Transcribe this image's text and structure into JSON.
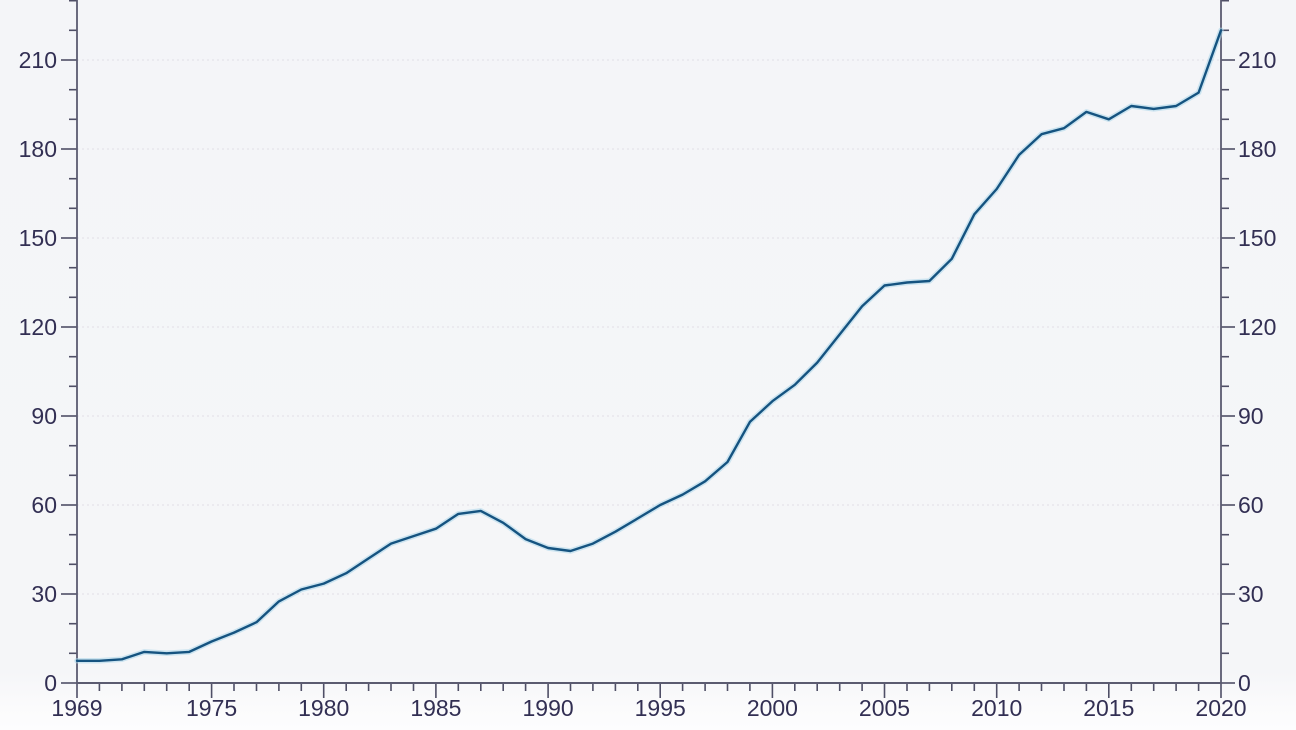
{
  "chart_data": {
    "type": "line",
    "title": "",
    "xlabel": "",
    "ylabel": "",
    "legend": "none",
    "grid": "horizontal dotted lines at labeled y ticks",
    "dual_y_axis": true,
    "xlim": [
      1969,
      2020
    ],
    "ylim_visible": [
      0,
      230
    ],
    "x_minor_tick_step": 1,
    "y_minor_tick_step": 10,
    "x_tick_labels": [
      "1969",
      "1975",
      "1980",
      "1985",
      "1990",
      "1995",
      "2000",
      "2005",
      "2010",
      "2015",
      "2020"
    ],
    "x_tick_values": [
      1969,
      1975,
      1980,
      1985,
      1990,
      1995,
      2000,
      2005,
      2010,
      2015,
      2020
    ],
    "y_tick_labels": [
      "0",
      "30",
      "60",
      "90",
      "120",
      "150",
      "180",
      "210"
    ],
    "y_tick_values": [
      0,
      30,
      60,
      90,
      120,
      150,
      180,
      210
    ],
    "x": [
      1969,
      1970,
      1971,
      1972,
      1973,
      1974,
      1975,
      1976,
      1977,
      1978,
      1979,
      1980,
      1981,
      1982,
      1983,
      1984,
      1985,
      1986,
      1987,
      1988,
      1989,
      1990,
      1991,
      1992,
      1993,
      1994,
      1995,
      1996,
      1997,
      1998,
      1999,
      2000,
      2001,
      2002,
      2003,
      2004,
      2005,
      2006,
      2007,
      2008,
      2009,
      2010,
      2011,
      2012,
      2013,
      2014,
      2015,
      2016,
      2017,
      2018,
      2019,
      2020
    ],
    "series": [
      {
        "name": "series-1",
        "values": [
          7.5,
          7.5,
          8,
          10.5,
          10,
          10.5,
          14,
          17,
          20.5,
          27.5,
          31.5,
          33.5,
          37,
          42,
          47,
          49.5,
          52,
          57,
          58,
          54,
          48.5,
          45.5,
          44.5,
          47,
          51,
          55.5,
          60,
          63.5,
          68,
          74.5,
          88,
          95,
          100.5,
          108,
          117.5,
          127,
          134,
          135,
          135.5,
          143,
          158,
          166.5,
          178,
          185,
          187,
          192.5,
          190,
          194.5,
          193.5,
          194.5,
          199,
          220
        ]
      }
    ],
    "colors": {
      "line": "#155380",
      "line_halo": "#a9d5e9",
      "axis": "#5b5b70",
      "tick": "#4f4f66",
      "label": "#322f53",
      "gridline": "#dfdde3",
      "background": "#f5f6f8"
    }
  }
}
